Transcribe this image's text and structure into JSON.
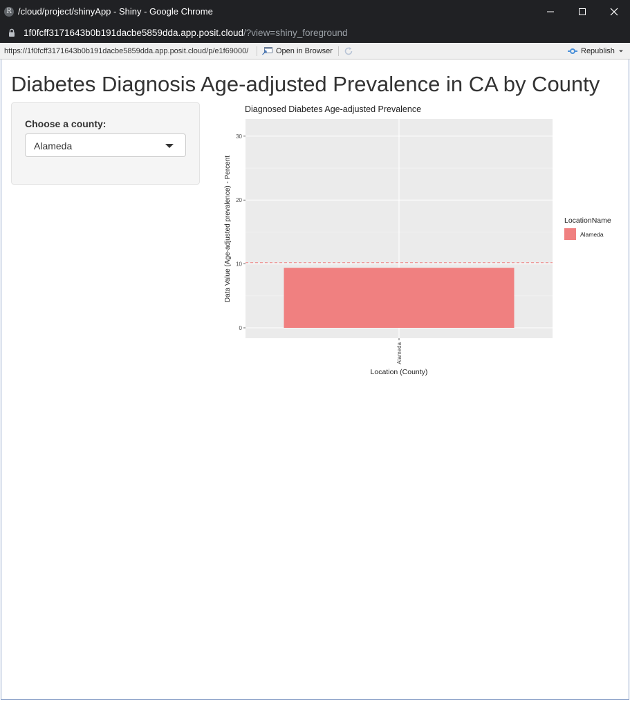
{
  "window": {
    "title": "/cloud/project/shinyApp - Shiny - Google Chrome",
    "app_icon_letter": "R"
  },
  "address": {
    "host": "1f0fcff3171643b0b191dacbe5859dda.app.posit.cloud",
    "path": "/?view=shiny_foreground"
  },
  "viewer": {
    "url": "https://1f0fcff3171643b0b191dacbe5859dda.app.posit.cloud/p/e1f69000/",
    "open_in_browser": "Open in Browser",
    "republish": "Republish"
  },
  "app": {
    "title": "Diabetes Diagnosis Age-adjusted Prevalence in CA by County",
    "county_label": "Choose a county:",
    "county_selected": "Alameda"
  },
  "chart_data": {
    "type": "bar",
    "title": "Diagnosed Diabetes Age-adjusted Prevalence",
    "xlabel": "Location (County)",
    "ylabel": "Data Value (Age-adjusted prevalence) - Percent",
    "categories": [
      "Alameda"
    ],
    "values": [
      9.4
    ],
    "reference_line": 10.2,
    "ylim": [
      0,
      31.5
    ],
    "yticks": [
      0,
      10,
      20,
      30
    ],
    "legend": {
      "title": "LocationName",
      "entries": [
        "Alameda"
      ],
      "placement": "right"
    },
    "bar_color": "#f08080",
    "panel_color": "#ebebeb",
    "reference_line_color": "#f08080",
    "grid": true
  }
}
